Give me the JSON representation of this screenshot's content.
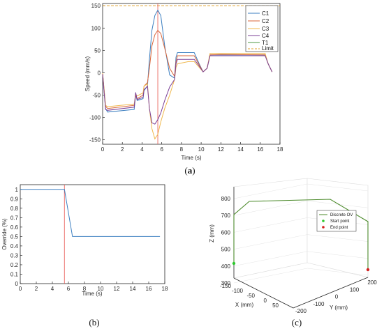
{
  "captions": [
    "(a)",
    "(b)",
    "(c)"
  ],
  "colors": {
    "C1": "#3b7ec0",
    "C2": "#d9663a",
    "C3": "#f0b84d",
    "C4": "#7b3f96",
    "T1": "#4f9a43",
    "limit": "#e2a02a",
    "marker": "#e8524a",
    "ov": "#4b8a2a",
    "start": "#2ec92e",
    "end": "#d42020"
  },
  "chart_data": [
    {
      "type": "line",
      "xlabel": "Time (s)",
      "ylabel": "Speed (mm/s)",
      "xlim": [
        0,
        18
      ],
      "ylim": [
        -160,
        155
      ],
      "xticks": [
        0,
        2,
        4,
        6,
        8,
        10,
        12,
        14,
        16,
        18
      ],
      "yticks": [
        -150,
        -100,
        -50,
        0,
        50,
        100,
        150
      ],
      "limit": 150,
      "vertical_marker_x": 5.6,
      "legend_position": "top-right",
      "series": [
        {
          "name": "C1",
          "points": [
            [
              0,
              -2
            ],
            [
              0.3,
              -80
            ],
            [
              0.5,
              -88
            ],
            [
              3.2,
              -82
            ],
            [
              3.35,
              -48
            ],
            [
              3.5,
              -62
            ],
            [
              4.1,
              -58
            ],
            [
              4.2,
              -40
            ],
            [
              4.55,
              -30
            ],
            [
              4.75,
              30
            ],
            [
              5.0,
              95
            ],
            [
              5.3,
              128
            ],
            [
              5.6,
              140
            ],
            [
              5.9,
              128
            ],
            [
              6.3,
              60
            ],
            [
              6.8,
              -5
            ],
            [
              7.3,
              -12
            ],
            [
              7.45,
              35
            ],
            [
              7.6,
              45
            ],
            [
              8.7,
              45
            ],
            [
              9.3,
              45
            ],
            [
              9.8,
              20
            ],
            [
              10.2,
              2
            ],
            [
              10.6,
              10
            ],
            [
              10.9,
              40
            ],
            [
              12,
              40
            ],
            [
              16.5,
              40
            ],
            [
              16.8,
              20
            ],
            [
              17.2,
              2
            ]
          ]
        },
        {
          "name": "C2",
          "points": [
            [
              0,
              -1
            ],
            [
              0.3,
              -75
            ],
            [
              0.5,
              -80
            ],
            [
              3.2,
              -73
            ],
            [
              3.35,
              -50
            ],
            [
              3.5,
              -58
            ],
            [
              4.1,
              -50
            ],
            [
              4.2,
              -30
            ],
            [
              4.55,
              -22
            ],
            [
              4.75,
              10
            ],
            [
              5.0,
              60
            ],
            [
              5.3,
              85
            ],
            [
              5.6,
              95
            ],
            [
              5.9,
              88
            ],
            [
              6.3,
              55
            ],
            [
              6.8,
              10
            ],
            [
              7.3,
              -8
            ],
            [
              7.45,
              25
            ],
            [
              7.6,
              38
            ],
            [
              8.7,
              38
            ],
            [
              9.3,
              38
            ],
            [
              9.8,
              18
            ],
            [
              10.2,
              2
            ],
            [
              10.6,
              10
            ],
            [
              10.9,
              40
            ],
            [
              12,
              41
            ],
            [
              16.5,
              40
            ],
            [
              16.8,
              20
            ],
            [
              17.2,
              2
            ]
          ]
        },
        {
          "name": "C3",
          "points": [
            [
              0,
              -1
            ],
            [
              0.3,
              -73
            ],
            [
              0.5,
              -76
            ],
            [
              3.2,
              -70
            ],
            [
              3.35,
              -48
            ],
            [
              3.5,
              -52
            ],
            [
              4.1,
              -45
            ],
            [
              4.2,
              -30
            ],
            [
              4.55,
              -25
            ],
            [
              4.75,
              -80
            ],
            [
              5.0,
              -125
            ],
            [
              5.3,
              -148
            ],
            [
              5.6,
              -138
            ],
            [
              5.9,
              -110
            ],
            [
              6.3,
              -80
            ],
            [
              6.8,
              -50
            ],
            [
              7.3,
              -15
            ],
            [
              7.45,
              12
            ],
            [
              7.6,
              20
            ],
            [
              8.7,
              25
            ],
            [
              9.3,
              25
            ],
            [
              9.8,
              12
            ],
            [
              10.2,
              2
            ],
            [
              10.6,
              10
            ],
            [
              10.9,
              43
            ],
            [
              12,
              43
            ],
            [
              16.5,
              43
            ],
            [
              16.8,
              20
            ],
            [
              17.2,
              2
            ]
          ]
        },
        {
          "name": "C4",
          "points": [
            [
              0,
              -3
            ],
            [
              0.3,
              -82
            ],
            [
              0.5,
              -84
            ],
            [
              3.2,
              -77
            ],
            [
              3.35,
              -44
            ],
            [
              3.5,
              -60
            ],
            [
              4.1,
              -55
            ],
            [
              4.2,
              -38
            ],
            [
              4.55,
              -30
            ],
            [
              4.75,
              -80
            ],
            [
              5.0,
              -112
            ],
            [
              5.3,
              -115
            ],
            [
              5.6,
              -105
            ],
            [
              5.9,
              -90
            ],
            [
              6.3,
              -62
            ],
            [
              6.8,
              -32
            ],
            [
              7.3,
              -15
            ],
            [
              7.45,
              20
            ],
            [
              7.6,
              30
            ],
            [
              8.7,
              30
            ],
            [
              9.3,
              30
            ],
            [
              9.8,
              15
            ],
            [
              10.2,
              2
            ],
            [
              10.6,
              10
            ],
            [
              10.9,
              38
            ],
            [
              12,
              38
            ],
            [
              16.5,
              38
            ],
            [
              16.8,
              20
            ],
            [
              17.2,
              2
            ]
          ]
        },
        {
          "name": "T1",
          "points": []
        }
      ]
    },
    {
      "type": "line",
      "xlabel": "Time (s)",
      "ylabel": "Override (%)",
      "xlim": [
        0,
        18
      ],
      "ylim": [
        0,
        1.05
      ],
      "xticks": [
        0,
        2,
        4,
        6,
        8,
        10,
        12,
        14,
        16,
        18
      ],
      "yticks": [
        0,
        0.1,
        0.2,
        0.3,
        0.4,
        0.5,
        0.6,
        0.7,
        0.8,
        0.9,
        1
      ],
      "vertical_marker_x": 5.5,
      "series": [
        {
          "points": [
            [
              0,
              1
            ],
            [
              5.5,
              1
            ],
            [
              6.5,
              0.5
            ],
            [
              17.4,
              0.5
            ]
          ]
        }
      ]
    },
    {
      "type": "scatter",
      "xlabel": "X (mm)",
      "ylabel": "Y (mm)",
      "zlabel": "Z (mm)",
      "zticks": [
        300,
        400,
        500,
        600,
        700,
        800
      ],
      "xticks": [
        -150,
        -100,
        -50,
        0,
        50
      ],
      "yticks": [
        -200,
        -100,
        0,
        100,
        200
      ],
      "legend": [
        "Discrete OV",
        "Start point",
        "End point"
      ],
      "legend_position": "top-right"
    }
  ]
}
